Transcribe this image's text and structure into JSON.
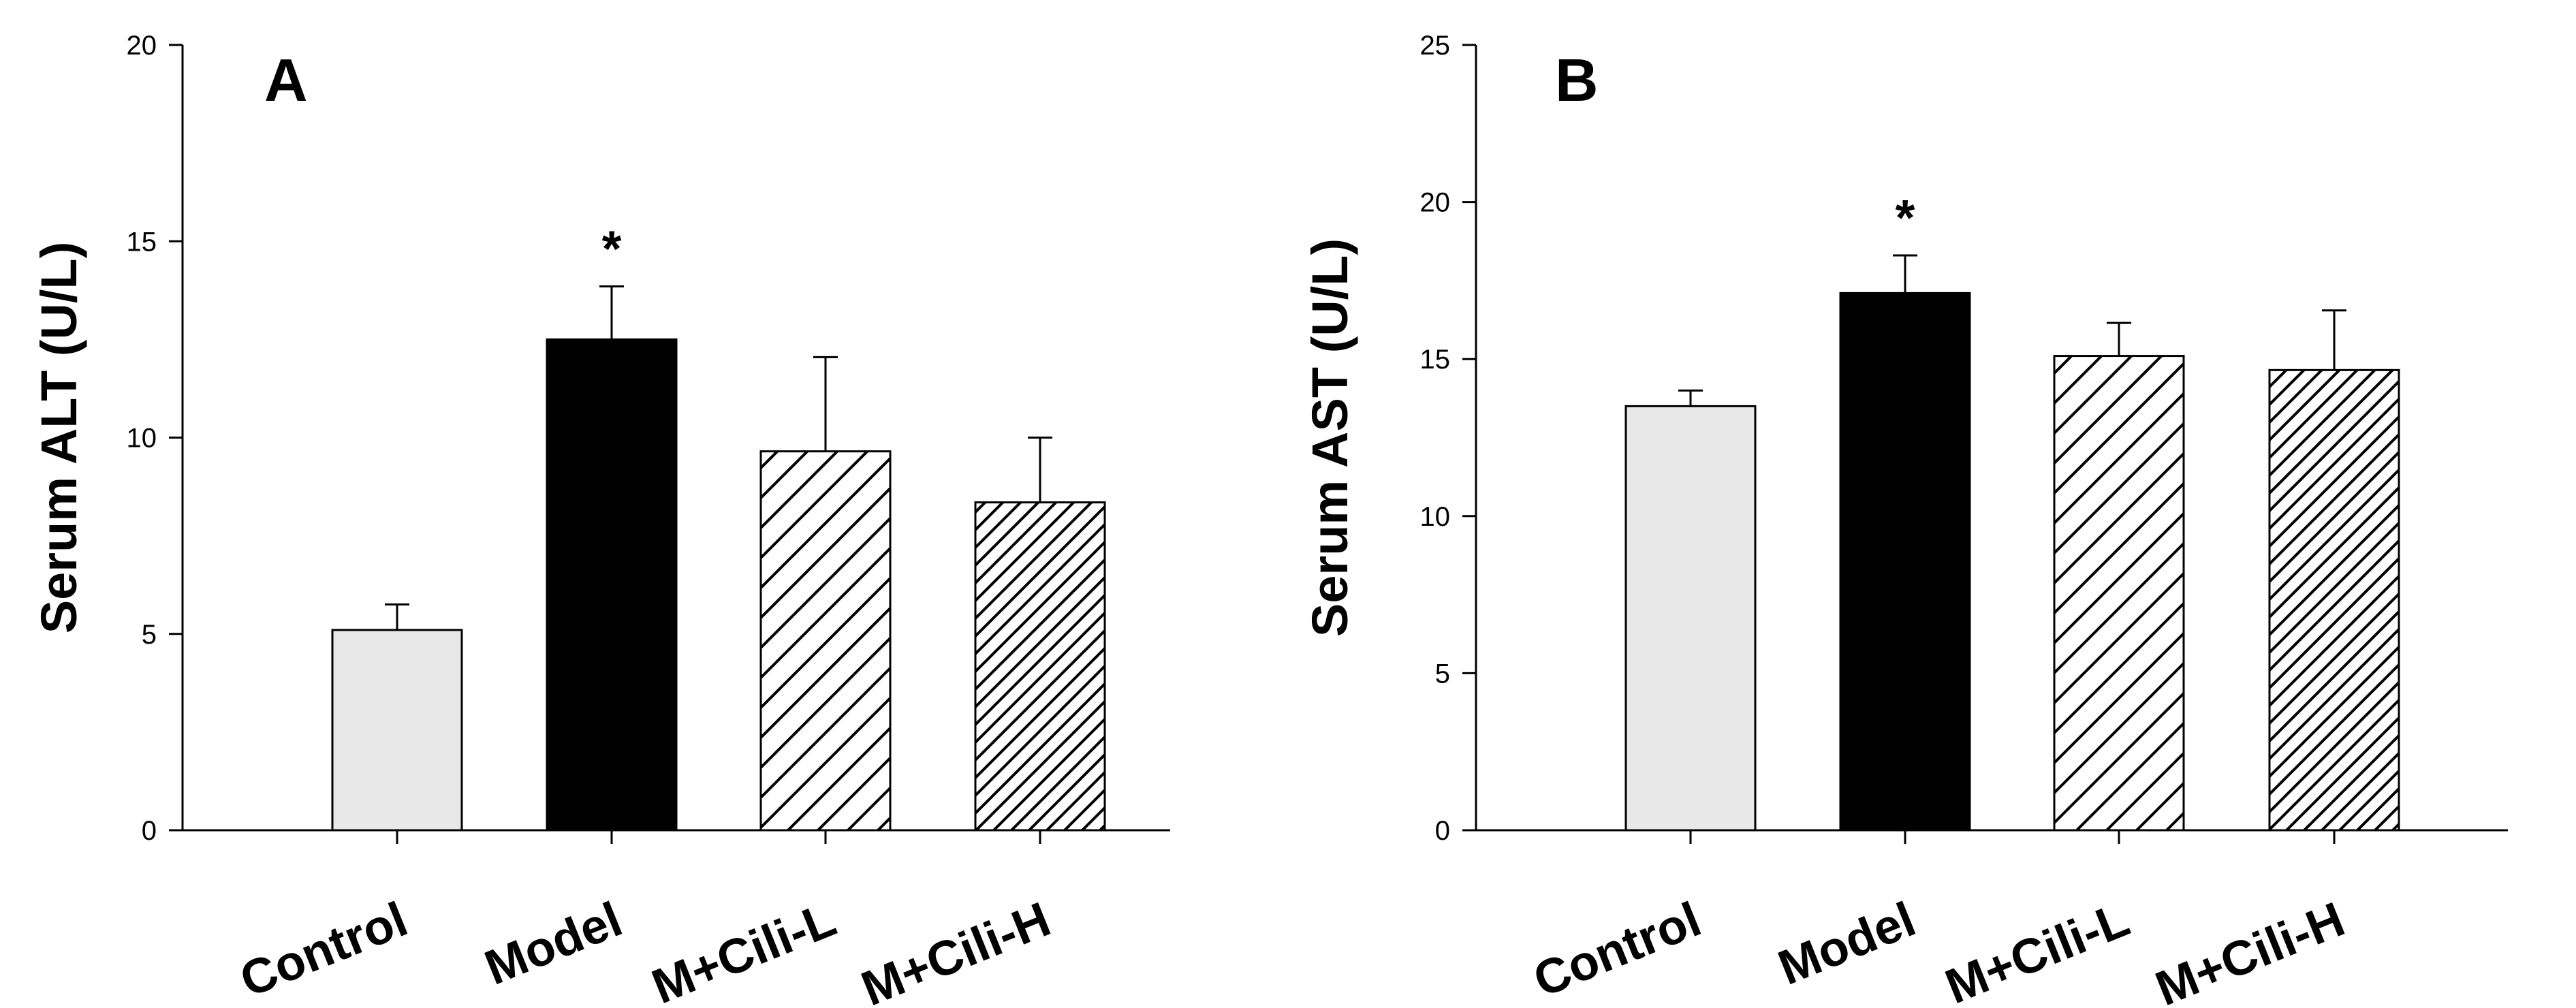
{
  "chart_data": [
    {
      "type": "bar",
      "panel_label": "A",
      "title": "",
      "xlabel": "",
      "ylabel": "Serum ALT (U/L)",
      "ylim": [
        0,
        20
      ],
      "yticks": [
        0,
        5,
        10,
        15,
        20
      ],
      "grid": false,
      "categories": [
        "Control",
        "Model",
        "M+Cili-L",
        "M+Cili-H"
      ],
      "values": [
        5.1,
        12.5,
        9.65,
        8.35
      ],
      "errors": [
        0.65,
        1.35,
        2.4,
        1.65
      ],
      "fills": [
        "light-gray",
        "black",
        "wide-hatch",
        "dense-hatch"
      ],
      "annotations": [
        {
          "category": "Model",
          "text": "*"
        }
      ]
    },
    {
      "type": "bar",
      "panel_label": "B",
      "title": "",
      "xlabel": "",
      "ylabel": "Serum AST (U/L)",
      "ylim": [
        0,
        25
      ],
      "yticks": [
        0,
        5,
        10,
        15,
        20,
        25
      ],
      "grid": false,
      "categories": [
        "Control",
        "Model",
        "M+Cili-L",
        "M+Cili-H"
      ],
      "values": [
        13.5,
        17.1,
        15.1,
        14.65
      ],
      "errors": [
        0.5,
        1.2,
        1.05,
        1.9
      ],
      "fills": [
        "light-gray",
        "black",
        "wide-hatch",
        "dense-hatch"
      ],
      "annotations": [
        {
          "category": "Model",
          "text": "*"
        }
      ]
    }
  ],
  "colors": {
    "control_fill": "#e8e8e8",
    "model_fill": "#000000",
    "hatch_fill": "#ffffff",
    "stroke": "#000000"
  }
}
